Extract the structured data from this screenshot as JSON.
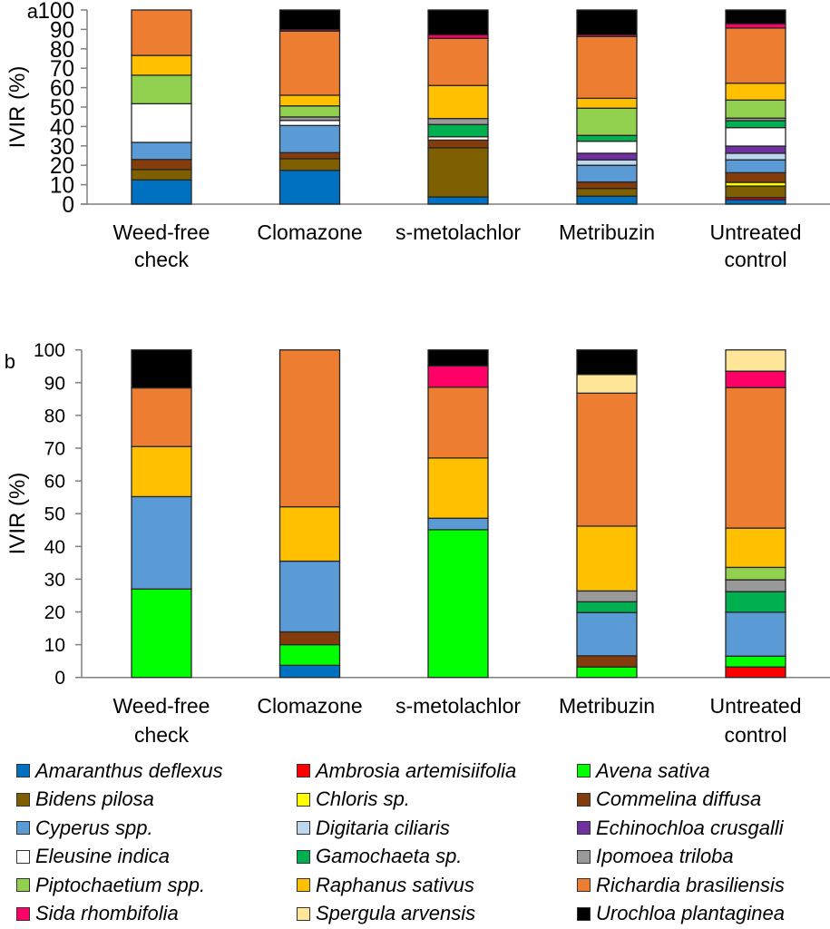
{
  "chart_data": [
    {
      "type": "bar",
      "stacked": true,
      "panel_label": "a",
      "title": "",
      "xlabel": "",
      "ylabel": "IVIR (%)",
      "ylim": [
        0,
        100
      ],
      "yticks": [
        0,
        10,
        20,
        30,
        40,
        50,
        60,
        70,
        80,
        90,
        100
      ],
      "grid": false,
      "categories": [
        "Weed-free\ncheck",
        "Clomazone",
        "s-metolachlor",
        "Metribuzin",
        "Untreated\ncontrol"
      ],
      "series": [
        {
          "name": "Amaranthus deflexus",
          "values": [
            12.5,
            17.4,
            3.7,
            4.1,
            2.3
          ]
        },
        {
          "name": "Ambrosia artemisiifolia",
          "values": [
            0,
            0,
            0,
            0,
            1.1
          ]
        },
        {
          "name": "Avena sativa",
          "values": [
            0,
            0,
            0,
            0,
            0
          ]
        },
        {
          "name": "Bidens pilosa",
          "values": [
            5.3,
            6.0,
            25.3,
            4.0,
            5.9
          ]
        },
        {
          "name": "Chloris sp.",
          "values": [
            0,
            0,
            0,
            0,
            1.9
          ]
        },
        {
          "name": "Commelina diffusa",
          "values": [
            5.2,
            3.1,
            4.0,
            3.3,
            5.0
          ]
        },
        {
          "name": "Cyperus spp.",
          "values": [
            8.8,
            14.0,
            0,
            8.6,
            6.6
          ]
        },
        {
          "name": "Digitaria ciliaris",
          "values": [
            0,
            0,
            0,
            2.8,
            3.4
          ]
        },
        {
          "name": "Echinochloa crusgalli",
          "values": [
            0,
            0,
            0,
            3.4,
            3.7
          ]
        },
        {
          "name": "Eleusine indica",
          "values": [
            19.9,
            2.6,
            1.7,
            6.2,
            9.5
          ]
        },
        {
          "name": "Gamochaeta sp.",
          "values": [
            0,
            0,
            6.3,
            3.0,
            3.6
          ]
        },
        {
          "name": "Ipomoea triloba",
          "values": [
            0,
            1.8,
            3.1,
            0,
            1.3
          ]
        },
        {
          "name": "Piptochaetium spp.",
          "values": [
            14.7,
            5.7,
            0,
            14.0,
            9.3
          ]
        },
        {
          "name": "Raphanus sativus",
          "values": [
            10.2,
            5.5,
            17.0,
            5.1,
            8.7
          ]
        },
        {
          "name": "Richardia brasiliensis",
          "values": [
            23.4,
            33.0,
            24.3,
            31.8,
            28.4
          ]
        },
        {
          "name": "Sida rhombifolia",
          "values": [
            0,
            0.8,
            1.8,
            0.9,
            2.2
          ]
        },
        {
          "name": "Spergula arvensis",
          "values": [
            0,
            0,
            0,
            0,
            0
          ]
        },
        {
          "name": "Urochloa plantaginea",
          "values": [
            0,
            10.1,
            12.8,
            12.8,
            7.1
          ]
        }
      ]
    },
    {
      "type": "bar",
      "stacked": true,
      "panel_label": "b",
      "title": "",
      "xlabel": "",
      "ylabel": "IVIR (%)",
      "ylim": [
        0,
        100
      ],
      "yticks": [
        0,
        10,
        20,
        30,
        40,
        50,
        60,
        70,
        80,
        90,
        100
      ],
      "grid": false,
      "categories": [
        "Weed-free\ncheck",
        "Clomazone",
        "s-metolachlor",
        "Metribuzin",
        "Untreated\ncontrol"
      ],
      "series": [
        {
          "name": "Amaranthus deflexus",
          "values": [
            0,
            3.7,
            0,
            0,
            0
          ]
        },
        {
          "name": "Ambrosia artemisiifolia",
          "values": [
            0,
            0,
            0,
            0,
            3.2
          ]
        },
        {
          "name": "Avena sativa",
          "values": [
            27.0,
            6.3,
            45.1,
            3.2,
            3.3
          ]
        },
        {
          "name": "Bidens pilosa",
          "values": [
            0,
            0,
            0,
            0,
            0
          ]
        },
        {
          "name": "Chloris sp.",
          "values": [
            0,
            0,
            0,
            0,
            0
          ]
        },
        {
          "name": "Commelina diffusa",
          "values": [
            0,
            3.9,
            0,
            3.4,
            0
          ]
        },
        {
          "name": "Cyperus spp.",
          "values": [
            28.2,
            21.6,
            3.5,
            13.2,
            13.4
          ]
        },
        {
          "name": "Digitaria ciliaris",
          "values": [
            0,
            0,
            0,
            0,
            0
          ]
        },
        {
          "name": "Echinochloa crusgalli",
          "values": [
            0,
            0,
            0,
            0,
            0
          ]
        },
        {
          "name": "Eleusine indica",
          "values": [
            0,
            0,
            0,
            0,
            0
          ]
        },
        {
          "name": "Gamochaeta sp.",
          "values": [
            0,
            0,
            0,
            3.3,
            6.3
          ]
        },
        {
          "name": "Ipomoea triloba",
          "values": [
            0,
            0,
            0,
            3.3,
            3.6
          ]
        },
        {
          "name": "Piptochaetium spp.",
          "values": [
            0,
            0,
            0,
            0,
            3.8
          ]
        },
        {
          "name": "Raphanus sativus",
          "values": [
            15.3,
            16.6,
            18.4,
            19.8,
            12.0
          ]
        },
        {
          "name": "Richardia brasiliensis",
          "values": [
            17.9,
            47.9,
            21.6,
            40.6,
            42.9
          ]
        },
        {
          "name": "Sida rhombifolia",
          "values": [
            0,
            0,
            6.5,
            0,
            5.0
          ]
        },
        {
          "name": "Spergula arvensis",
          "values": [
            0,
            0,
            0,
            5.7,
            6.5
          ]
        },
        {
          "name": "Urochloa plantaginea",
          "values": [
            11.6,
            0,
            4.9,
            7.5,
            0
          ]
        }
      ]
    }
  ],
  "legend": {
    "placement": "bottom",
    "items": [
      {
        "name": "Amaranthus deflexus",
        "color": "#0070C0"
      },
      {
        "name": "Ambrosia artemisiifolia",
        "color": "#FF0000"
      },
      {
        "name": "Avena sativa",
        "color": "#00FF00"
      },
      {
        "name": "Bidens pilosa",
        "color": "#7F6000"
      },
      {
        "name": "Chloris sp.",
        "color": "#FFFF00"
      },
      {
        "name": "Commelina diffusa",
        "color": "#843C0C"
      },
      {
        "name": "Cyperus spp.",
        "color": "#5B9BD5"
      },
      {
        "name": "Digitaria ciliaris",
        "color": "#BDD7EE"
      },
      {
        "name": "Echinochloa crusgalli",
        "color": "#7030A0"
      },
      {
        "name": "Eleusine indica",
        "color": "#FFFFFF"
      },
      {
        "name": "Gamochaeta sp.",
        "color": "#00B050"
      },
      {
        "name": "Ipomoea triloba",
        "color": "#999999"
      },
      {
        "name": "Piptochaetium spp.",
        "color": "#92D050"
      },
      {
        "name": "Raphanus sativus",
        "color": "#FFC000"
      },
      {
        "name": "Richardia brasiliensis",
        "color": "#ED7D31"
      },
      {
        "name": "Sida rhombifolia",
        "color": "#FF0066"
      },
      {
        "name": "Spergula arvensis",
        "color": "#FFE699"
      },
      {
        "name": "Urochloa plantaginea",
        "color": "#000000"
      }
    ]
  }
}
